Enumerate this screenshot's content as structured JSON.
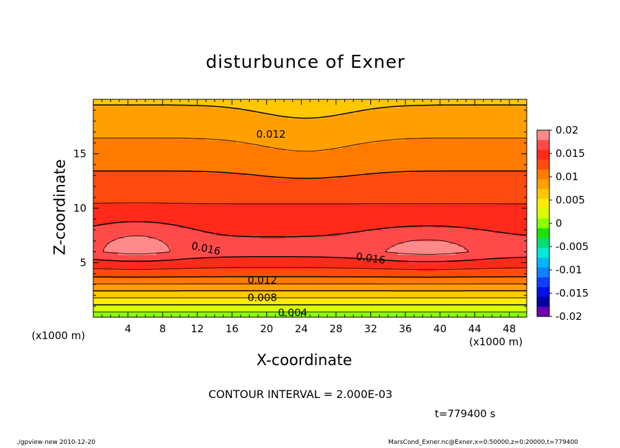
{
  "chart_data": {
    "type": "filled-contour",
    "title": "disturbunce of Exner",
    "xlabel": "X-coordinate",
    "ylabel": "Z-coordinate",
    "x_unit_label": "(x1000 m)",
    "z_unit_label": "(x1000 m)",
    "xlim": [
      0,
      50
    ],
    "zlim": [
      0,
      20
    ],
    "x_ticks": [
      "4",
      "8",
      "12",
      "16",
      "20",
      "24",
      "28",
      "32",
      "36",
      "40",
      "44",
      "48"
    ],
    "z_ticks": [
      "5",
      "10",
      "15"
    ],
    "contour_interval_text": "CONTOUR INTERVAL = 2.000E-03",
    "time_text": "t=779400 s",
    "contour_labels": [
      {
        "text": "0.012",
        "x": 20.5,
        "z": 16.8
      },
      {
        "text": "0.016",
        "x": 13.0,
        "z": 6.3
      },
      {
        "text": "0.016",
        "x": 32.0,
        "z": 5.4
      },
      {
        "text": "0.012",
        "x": 19.5,
        "z": 3.4
      },
      {
        "text": "0.008",
        "x": 19.5,
        "z": 1.8
      },
      {
        "text": "0.004",
        "x": 23.0,
        "z": 0.4
      }
    ],
    "colorbar": {
      "levels": [
        "0.02",
        "0.015",
        "0.01",
        "0.005",
        "0",
        "-0.005",
        "-0.01",
        "-0.015",
        "-0.02"
      ],
      "colors": [
        "#ff8a8a",
        "#ff4a4a",
        "#ff2a1a",
        "#ff4a10",
        "#ff7a00",
        "#ffa000",
        "#ffc800",
        "#ffec00",
        "#d8ff00",
        "#8cff00",
        "#20e000",
        "#00e070",
        "#00e8d8",
        "#00b8ff",
        "#1080ff",
        "#1040ff",
        "#0010e8",
        "#0000a8",
        "#7000b0"
      ]
    },
    "bands": [
      {
        "level_from": 0.0,
        "level_to": 0.002,
        "color": "#8cff00"
      },
      {
        "level_from": 0.002,
        "level_to": 0.004,
        "color": "#d8ff00"
      },
      {
        "level_from": 0.004,
        "level_to": 0.006,
        "color": "#ffec00"
      },
      {
        "level_from": 0.006,
        "level_to": 0.008,
        "color": "#ffc800"
      },
      {
        "level_from": 0.008,
        "level_to": 0.01,
        "color": "#ffa000"
      },
      {
        "level_from": 0.01,
        "level_to": 0.012,
        "color": "#ff7a00"
      },
      {
        "level_from": 0.012,
        "level_to": 0.014,
        "color": "#ff4a10"
      },
      {
        "level_from": 0.014,
        "level_to": 0.016,
        "color": "#ff2a1a"
      },
      {
        "level_from": 0.016,
        "level_to": 0.018,
        "color": "#ff4a4a"
      },
      {
        "level_from": 0.018,
        "level_to": 0.02,
        "color": "#ff8a8a"
      }
    ]
  },
  "footer": {
    "left": "./gpview-new   2010-12-20",
    "right": "MarsCond_Exner.nc@Exner,x=0:50000,z=0:20000,t=779400"
  }
}
